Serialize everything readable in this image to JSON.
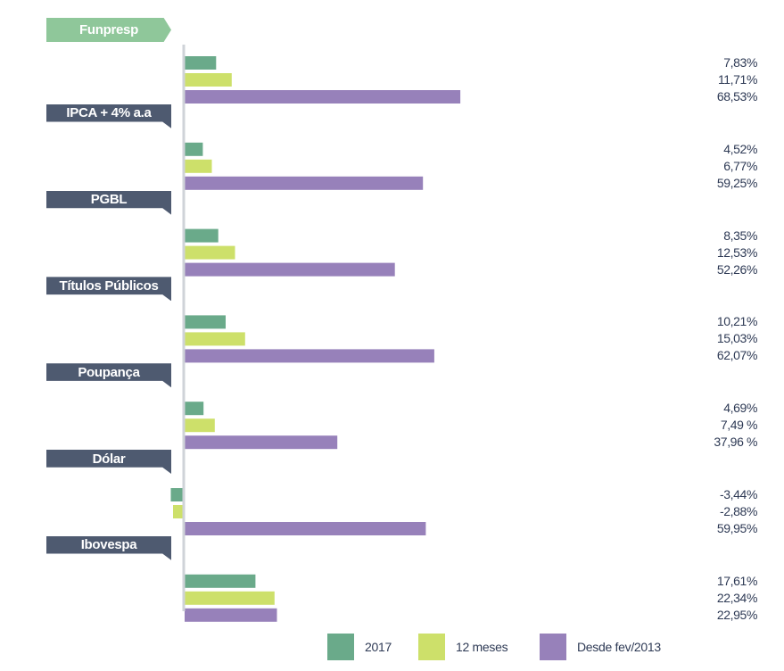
{
  "chart_data": {
    "type": "bar",
    "orientation": "horizontal",
    "title": "",
    "xlabel": "",
    "ylabel": "",
    "categories": [
      "Funpresp",
      "IPCA + 4% a.a",
      "PGBL",
      "Títulos Públicos",
      "Poupança",
      "Dólar",
      "Ibovespa"
    ],
    "series": [
      {
        "name": "2017",
        "color": "#6aaa8a",
        "values": [
          7.83,
          4.52,
          8.35,
          10.21,
          4.69,
          -3.44,
          17.61
        ],
        "labels": [
          "7,83%",
          "4,52%",
          "8,35%",
          "10,21%",
          "4,69%",
          "-3,44%",
          "17,61%"
        ]
      },
      {
        "name": "12 meses",
        "color": "#cde06a",
        "values": [
          11.71,
          6.77,
          12.53,
          15.03,
          7.49,
          -2.88,
          22.34
        ],
        "labels": [
          "11,71%",
          "6,77%",
          "12,53%",
          "15,03%",
          "7,49 %",
          "-2,88%",
          "22,34%"
        ]
      },
      {
        "name": "Desde fev/2013",
        "color": "#9781ba",
        "values": [
          68.53,
          59.25,
          52.26,
          62.07,
          37.96,
          59.95,
          22.95
        ],
        "labels": [
          "68,53%",
          "59,25%",
          "52,26%",
          "62,07%",
          "37,96 %",
          "59,95%",
          "22,95%"
        ]
      }
    ],
    "highlight_category": "Funpresp",
    "highlight_color": "#8fc79a",
    "category_tag_color": "#4e5a70",
    "legend_position": "bottom",
    "grid": false
  }
}
